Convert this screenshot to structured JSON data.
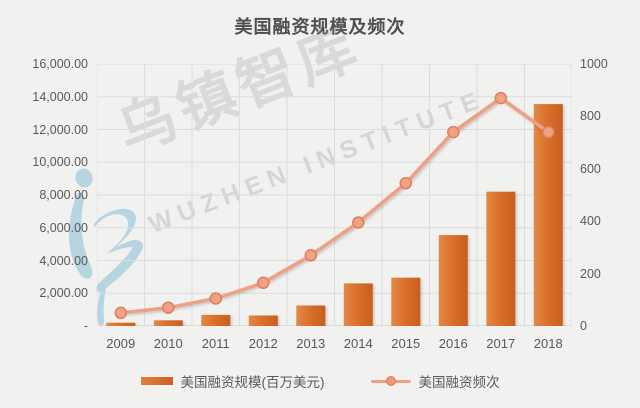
{
  "title": "美国融资规模及频次",
  "watermark": {
    "cn": "乌镇智库",
    "en": "WUZHEN  INSTITUTE",
    "logo": "wuzhen-swoosh-logo",
    "logo_color": "#a9cede"
  },
  "colors": {
    "background": "#f1f1ef",
    "text": "#595959",
    "grid": "#dcdcdc",
    "axis_line": "#c9c9c9",
    "bar_light": "#e0813d",
    "bar_dark": "#cb5f1d",
    "line": "#eea084",
    "marker_fill": "#f0a285",
    "marker_stroke": "#dd7f5b"
  },
  "chart_data": {
    "type": "bar",
    "subtype": "combo-bar-line-dual-axis",
    "title": "美国融资规模及频次",
    "categories": [
      "2009",
      "2010",
      "2011",
      "2012",
      "2013",
      "2014",
      "2015",
      "2016",
      "2017",
      "2018"
    ],
    "series": [
      {
        "name": "美国融资规模(百万美元)",
        "type": "bar",
        "axis": "left",
        "values": [
          200,
          350,
          680,
          640,
          1250,
          2600,
          2950,
          5550,
          8200,
          13550
        ]
      },
      {
        "name": "美国融资频次",
        "type": "line",
        "axis": "right",
        "values": [
          50,
          70,
          105,
          165,
          270,
          395,
          545,
          740,
          870,
          740
        ]
      }
    ],
    "left_axis": {
      "min": 0,
      "max": 16000,
      "step": 2000,
      "tick_labels_top_to_bottom": [
        "16,000.00",
        "14,000.00",
        "12,000.00",
        "10,000.00",
        "8,000.00",
        "6,000.00",
        "4,000.00",
        "2,000.00",
        "-"
      ]
    },
    "right_axis": {
      "min": 0,
      "max": 1000,
      "step": 200,
      "tick_labels_top_to_bottom": [
        "1000",
        "800",
        "600",
        "400",
        "200",
        "0"
      ]
    },
    "grid": true,
    "legend_position": "bottom"
  },
  "legend": {
    "bar_label": "美国融资规模(百万美元)",
    "line_label": "美国融资频次"
  }
}
